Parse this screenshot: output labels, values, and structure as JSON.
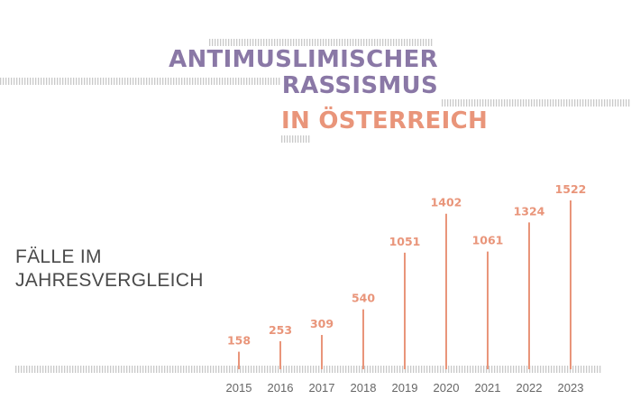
{
  "header": {
    "title_line1": "ANTIMUSLIMISCHER",
    "title_line2": "RASSISMUS",
    "title_line3": "IN ÖSTERREICH"
  },
  "chart_label": {
    "line1": "FÄLLE IM",
    "line2": "JAHRESVERGLEICH"
  },
  "colors": {
    "purple": "#8a78a6",
    "coral": "#e9957a",
    "stripe": "#c9c9c9",
    "axis_text": "#666666",
    "label_text": "#4a4a4a"
  },
  "chart_data": {
    "type": "bar",
    "style": "lollipop-lines",
    "categories": [
      "2015",
      "2016",
      "2017",
      "2018",
      "2019",
      "2020",
      "2021",
      "2022",
      "2023"
    ],
    "values": [
      158,
      253,
      309,
      540,
      1051,
      1402,
      1061,
      1324,
      1522
    ],
    "title": "",
    "xlabel": "",
    "ylabel": "",
    "ylim": [
      0,
      1522
    ],
    "grid": false,
    "legend": "none"
  }
}
